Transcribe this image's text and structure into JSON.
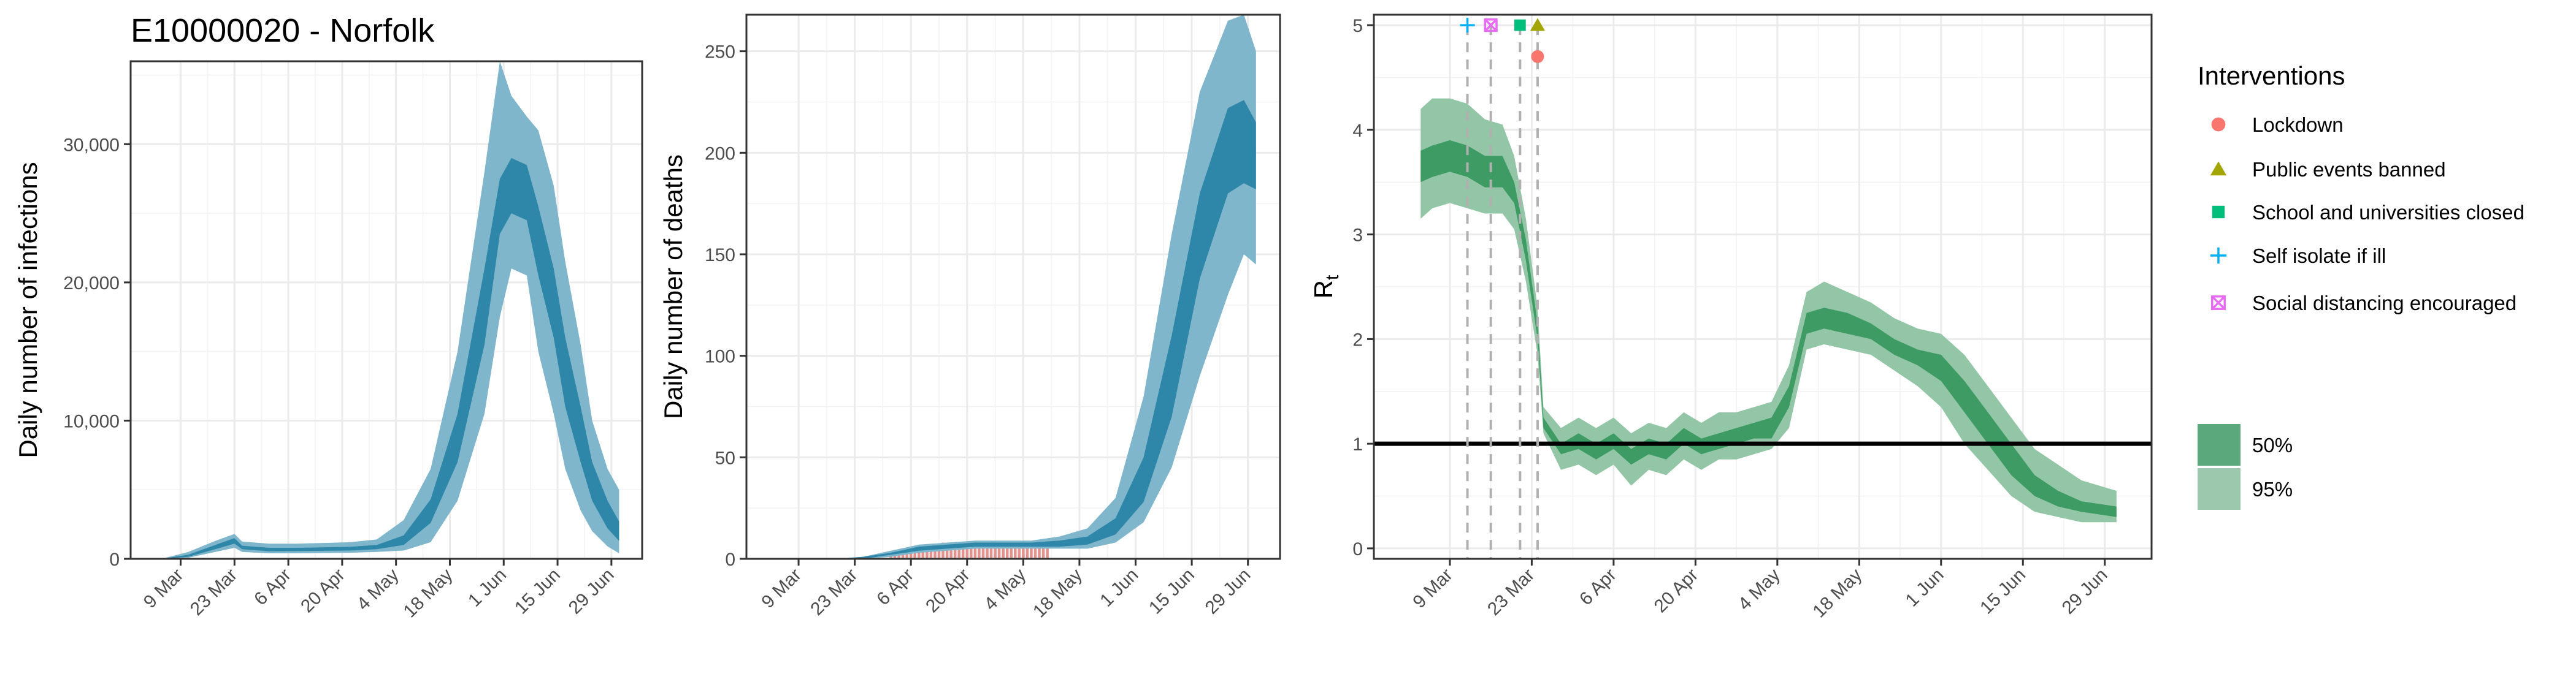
{
  "chart_data": [
    {
      "type": "area",
      "title": "E10000020 - Norfolk",
      "xlabel": "",
      "ylabel": "Daily number of infections",
      "x_ticks": [
        "9 Mar",
        "23 Mar",
        "6 Apr",
        "20 Apr",
        "4 May",
        "18 May",
        "1 Jun",
        "15 Jun",
        "29 Jun"
      ],
      "y_ticks": [
        "0",
        "10,000",
        "20,000",
        "30,000"
      ],
      "ylim": [
        0,
        36000
      ],
      "colors": {
        "band50": "#2e86a8",
        "band95": "#7fb6cb"
      },
      "x": [
        "2020-03-04",
        "2020-03-11",
        "2020-03-18",
        "2020-03-23",
        "2020-03-25",
        "2020-04-01",
        "2020-04-08",
        "2020-04-15",
        "2020-04-22",
        "2020-04-29",
        "2020-05-06",
        "2020-05-13",
        "2020-05-20",
        "2020-05-27",
        "2020-05-31",
        "2020-06-03",
        "2020-06-07",
        "2020-06-10",
        "2020-06-14",
        "2020-06-17",
        "2020-06-21",
        "2020-06-24",
        "2020-06-28",
        "2020-07-01"
      ],
      "series": [
        {
          "name": "50%",
          "lower": [
            0,
            150,
            700,
            1100,
            700,
            550,
            560,
            580,
            600,
            700,
            1000,
            2600,
            7000,
            15500,
            23500,
            25000,
            24500,
            20500,
            16000,
            11000,
            7000,
            4200,
            2200,
            1300
          ],
          "upper": [
            0,
            300,
            1000,
            1500,
            950,
            800,
            800,
            830,
            870,
            1000,
            1700,
            4300,
            10500,
            21000,
            27500,
            29000,
            28500,
            25500,
            21000,
            16000,
            11000,
            7000,
            4200,
            2700
          ]
        },
        {
          "name": "95%",
          "lower": [
            0,
            80,
            500,
            800,
            500,
            400,
            400,
            420,
            440,
            500,
            600,
            1200,
            4200,
            10500,
            17500,
            21000,
            20500,
            15000,
            10500,
            6500,
            3500,
            2000,
            900,
            400
          ],
          "upper": [
            0,
            500,
            1300,
            1800,
            1250,
            1100,
            1100,
            1150,
            1200,
            1400,
            2800,
            6500,
            15000,
            28000,
            36000,
            33500,
            32000,
            31000,
            27000,
            21500,
            15500,
            10000,
            6500,
            5000
          ]
        }
      ]
    },
    {
      "type": "area",
      "title": "",
      "xlabel": "",
      "ylabel": "Daily number of deaths",
      "x_ticks": [
        "9 Mar",
        "23 Mar",
        "6 Apr",
        "20 Apr",
        "4 May",
        "18 May",
        "1 Jun",
        "15 Jun",
        "29 Jun"
      ],
      "y_ticks": [
        "0",
        "50",
        "100",
        "150",
        "200",
        "250"
      ],
      "ylim": [
        0,
        268
      ],
      "colors": {
        "band50": "#2e86a8",
        "band95": "#7fb6cb",
        "bars": "#e3928e"
      },
      "x": [
        "2020-03-04",
        "2020-03-11",
        "2020-03-18",
        "2020-03-25",
        "2020-04-01",
        "2020-04-08",
        "2020-04-15",
        "2020-04-22",
        "2020-04-29",
        "2020-05-06",
        "2020-05-13",
        "2020-05-20",
        "2020-05-27",
        "2020-06-03",
        "2020-06-10",
        "2020-06-17",
        "2020-06-24",
        "2020-06-28",
        "2020-07-01"
      ],
      "series": [
        {
          "name": "50%",
          "lower": [
            0,
            0,
            0,
            0,
            2,
            4,
            5,
            6,
            6,
            6,
            6,
            7,
            12,
            28,
            70,
            138,
            180,
            185,
            182
          ],
          "upper": [
            0,
            0,
            0,
            1,
            3,
            6,
            7,
            8,
            8,
            8,
            9,
            11,
            20,
            50,
            110,
            180,
            222,
            226,
            215
          ]
        },
        {
          "name": "95%",
          "lower": [
            0,
            0,
            0,
            0,
            1,
            3,
            4,
            5,
            5,
            5,
            5,
            5,
            8,
            18,
            45,
            90,
            130,
            150,
            145
          ],
          "upper": [
            0,
            0,
            0,
            1,
            4,
            7,
            8,
            9,
            9,
            9,
            11,
            15,
            30,
            80,
            160,
            230,
            265,
            268,
            250
          ]
        }
      ],
      "bars": {
        "start": "2020-04-01",
        "end": "2020-05-10",
        "values": [
          2,
          3,
          4,
          4,
          5,
          5,
          6,
          6,
          7,
          7,
          6,
          7,
          7,
          8,
          7,
          6,
          7,
          7,
          8,
          7,
          7,
          6,
          7,
          7,
          8,
          7,
          6,
          7,
          6,
          7,
          7,
          6,
          7,
          7,
          6,
          6,
          6,
          6,
          7,
          6
        ]
      }
    },
    {
      "type": "area",
      "title": "",
      "xlabel": "",
      "ylabel": "R",
      "ylabel_sub": "t",
      "x_ticks": [
        "9 Mar",
        "23 Mar",
        "6 Apr",
        "20 Apr",
        "4 May",
        "18 May",
        "1 Jun",
        "15 Jun",
        "29 Jun"
      ],
      "y_ticks": [
        "0",
        "1",
        "2",
        "3",
        "4",
        "5"
      ],
      "ylim": [
        -0.1,
        5.1
      ],
      "reference_line": 1,
      "colors": {
        "band50": "#3d9b63",
        "band95": "#93c6a6",
        "lockdown": "#f8766d",
        "events": "#a3a500",
        "school": "#00bf7d",
        "isolate": "#00b0f6",
        "distancing": "#e76bf3"
      },
      "x": [
        "2020-03-04",
        "2020-03-06",
        "2020-03-09",
        "2020-03-12",
        "2020-03-15",
        "2020-03-18",
        "2020-03-20",
        "2020-03-22",
        "2020-03-24",
        "2020-03-25",
        "2020-03-28",
        "2020-03-31",
        "2020-04-03",
        "2020-04-06",
        "2020-04-09",
        "2020-04-12",
        "2020-04-15",
        "2020-04-18",
        "2020-04-21",
        "2020-04-24",
        "2020-04-27",
        "2020-04-30",
        "2020-05-03",
        "2020-05-06",
        "2020-05-09",
        "2020-05-12",
        "2020-05-16",
        "2020-05-20",
        "2020-05-24",
        "2020-05-28",
        "2020-06-01",
        "2020-06-05",
        "2020-06-09",
        "2020-06-13",
        "2020-06-17",
        "2020-06-21",
        "2020-06-25",
        "2020-07-01"
      ],
      "series": [
        {
          "name": "50%",
          "lower": [
            3.5,
            3.55,
            3.6,
            3.55,
            3.45,
            3.45,
            3.3,
            2.75,
            2.0,
            1.15,
            0.9,
            0.95,
            0.85,
            0.95,
            0.8,
            0.9,
            0.85,
            1.0,
            0.9,
            0.95,
            1.0,
            1.05,
            1.05,
            1.35,
            2.05,
            2.1,
            2.05,
            2.0,
            1.85,
            1.75,
            1.6,
            1.3,
            1.0,
            0.7,
            0.5,
            0.4,
            0.35,
            0.3
          ],
          "upper": [
            3.8,
            3.85,
            3.9,
            3.85,
            3.75,
            3.75,
            3.5,
            2.95,
            2.15,
            1.25,
            1.0,
            1.1,
            1.0,
            1.1,
            0.95,
            1.05,
            1.0,
            1.15,
            1.05,
            1.1,
            1.15,
            1.2,
            1.25,
            1.55,
            2.25,
            2.3,
            2.25,
            2.15,
            2.0,
            1.9,
            1.85,
            1.6,
            1.3,
            1.0,
            0.7,
            0.55,
            0.45,
            0.4
          ]
        },
        {
          "name": "95%",
          "lower": [
            3.15,
            3.25,
            3.3,
            3.25,
            3.2,
            3.2,
            3.05,
            2.55,
            1.85,
            1.1,
            0.75,
            0.8,
            0.7,
            0.8,
            0.6,
            0.75,
            0.7,
            0.85,
            0.75,
            0.85,
            0.85,
            0.9,
            0.95,
            1.15,
            1.9,
            1.95,
            1.9,
            1.85,
            1.7,
            1.55,
            1.35,
            1.0,
            0.75,
            0.5,
            0.35,
            0.3,
            0.25,
            0.25
          ],
          "upper": [
            4.2,
            4.3,
            4.3,
            4.25,
            4.1,
            4.05,
            3.75,
            3.15,
            2.3,
            1.35,
            1.15,
            1.25,
            1.15,
            1.25,
            1.1,
            1.2,
            1.15,
            1.3,
            1.2,
            1.3,
            1.3,
            1.35,
            1.4,
            1.75,
            2.45,
            2.55,
            2.45,
            2.35,
            2.2,
            2.1,
            2.05,
            1.85,
            1.55,
            1.25,
            0.95,
            0.8,
            0.65,
            0.55
          ]
        }
      ],
      "interventions": [
        {
          "name": "Self isolate if ill",
          "date": "2020-03-12",
          "y": 5.0
        },
        {
          "name": "Social distancing encouraged",
          "date": "2020-03-16",
          "y": 5.0
        },
        {
          "name": "School and universities closed",
          "date": "2020-03-21",
          "y": 5.0
        },
        {
          "name": "Public events banned",
          "date": "2020-03-24",
          "y": 5.0
        },
        {
          "name": "Lockdown",
          "date": "2020-03-24",
          "y": 4.7
        }
      ]
    }
  ],
  "legend": {
    "title": "Interventions",
    "items": [
      {
        "label": "Lockdown",
        "shape": "circle",
        "color": "#f8766d"
      },
      {
        "label": "Public events banned",
        "shape": "triangle",
        "color": "#a3a500"
      },
      {
        "label": "School and universities closed",
        "shape": "square",
        "color": "#00bf7d"
      },
      {
        "label": "Self isolate if ill",
        "shape": "plus",
        "color": "#00b0f6"
      },
      {
        "label": "Social distancing encouraged",
        "shape": "boxx",
        "color": "#e76bf3"
      }
    ],
    "bands": [
      {
        "label": "50%",
        "color": "#5aa87c"
      },
      {
        "label": "95%",
        "color": "#9cc9ad"
      }
    ]
  }
}
